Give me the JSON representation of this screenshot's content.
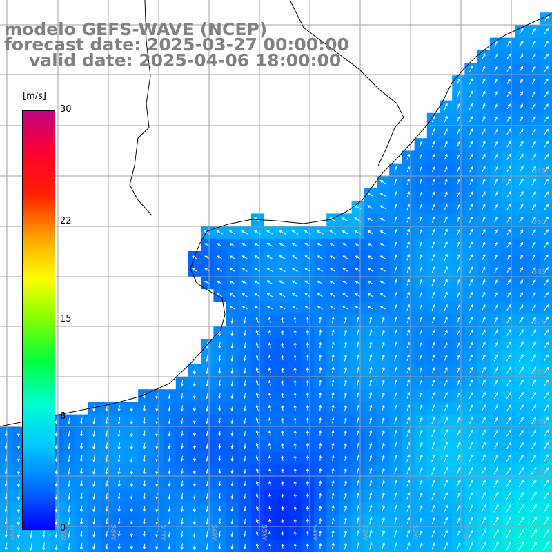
{
  "title": {
    "line1": "modelo GEFS-WAVE (NCEP)",
    "line2": "forecast date: 2025-03-27 00:00:00",
    "line3": "valid date: 2025-04-06 18:00:00"
  },
  "colorbar": {
    "units": "[m/s]",
    "ticks": [
      {
        "value": 30,
        "label": "30"
      },
      {
        "value": 22,
        "label": "22"
      },
      {
        "value": 15,
        "label": "15"
      },
      {
        "value": 8,
        "label": "8"
      },
      {
        "value": 0,
        "label": "0"
      }
    ],
    "range": [
      0,
      30
    ],
    "colors": [
      "#0000ff",
      "#0070ff",
      "#00c8ff",
      "#00ffd0",
      "#00ff40",
      "#80ff00",
      "#ffff00",
      "#ffa000",
      "#ff2000",
      "#ff0030",
      "#c00080"
    ]
  },
  "map": {
    "lon_labels": [
      "60W",
      "59W",
      "58W",
      "57W",
      "56W",
      "55W",
      "54W",
      "53W",
      "52W",
      "51W"
    ],
    "lat_labels": [
      "34S",
      "35S",
      "36S",
      "37S",
      "38S",
      "39S",
      "40S"
    ],
    "land_color": "#ffffff",
    "grid_color": "#a0a0a0",
    "coast_color": "#000000",
    "arrow_color": "#ffffff"
  }
}
